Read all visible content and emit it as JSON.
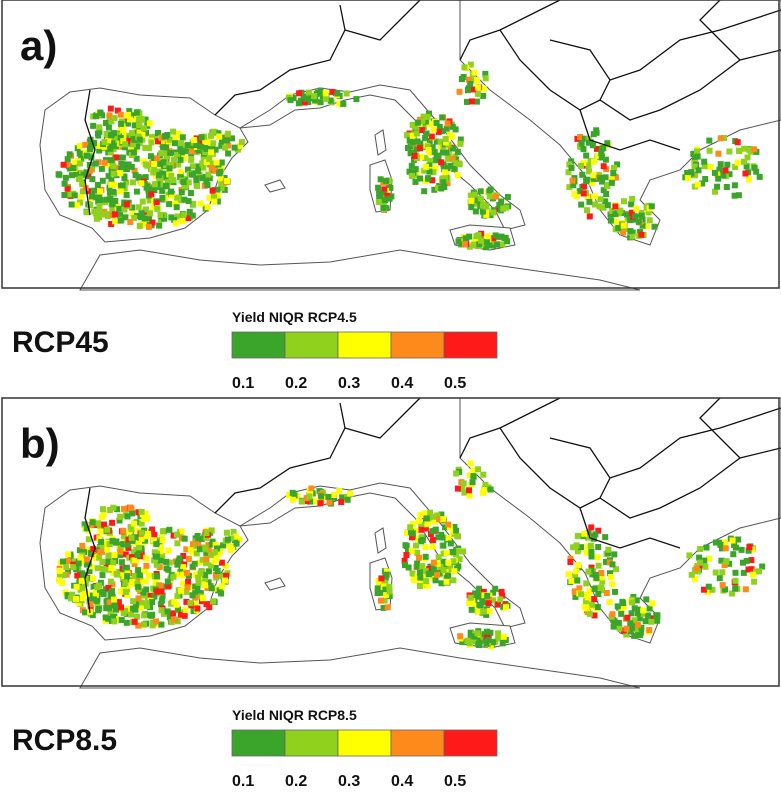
{
  "panels": [
    {
      "label": "a)",
      "scenario": "RCP45",
      "legend": {
        "title": "Yield NIQR RCP4.5",
        "colors": [
          "#3aa52a",
          "#8fd11c",
          "#ffff00",
          "#ff8a1c",
          "#ff1a1a"
        ],
        "ticks": [
          0.1,
          0.2,
          0.3,
          0.4,
          0.5
        ]
      }
    },
    {
      "label": "b)",
      "scenario": "RCP8.5",
      "legend": {
        "title": "Yield NIQR RCP8.5",
        "colors": [
          "#3aa52a",
          "#8fd11c",
          "#ffff00",
          "#ff8a1c",
          "#ff1a1a"
        ],
        "ticks": [
          0.1,
          0.2,
          0.3,
          0.4,
          0.5
        ]
      }
    }
  ]
}
